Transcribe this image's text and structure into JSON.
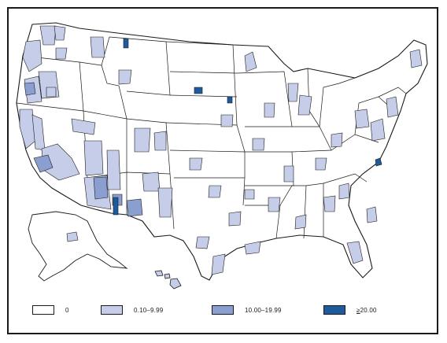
{
  "colors": {
    "bin_0": "#ffffff",
    "bin_1": "#c6cde9",
    "bin_2": "#8a9fcf",
    "bin_3": "#1d5b9e",
    "stroke": "#1a1a1a"
  },
  "legend": [
    {
      "label": "0",
      "color_key": "bin_0"
    },
    {
      "label": "0.10–9.99",
      "color_key": "bin_1"
    },
    {
      "label": "10.00–19.99",
      "color_key": "bin_2"
    },
    {
      "ge_symbol": "≥",
      "label": "20.00",
      "color_key": "bin_3"
    }
  ]
}
